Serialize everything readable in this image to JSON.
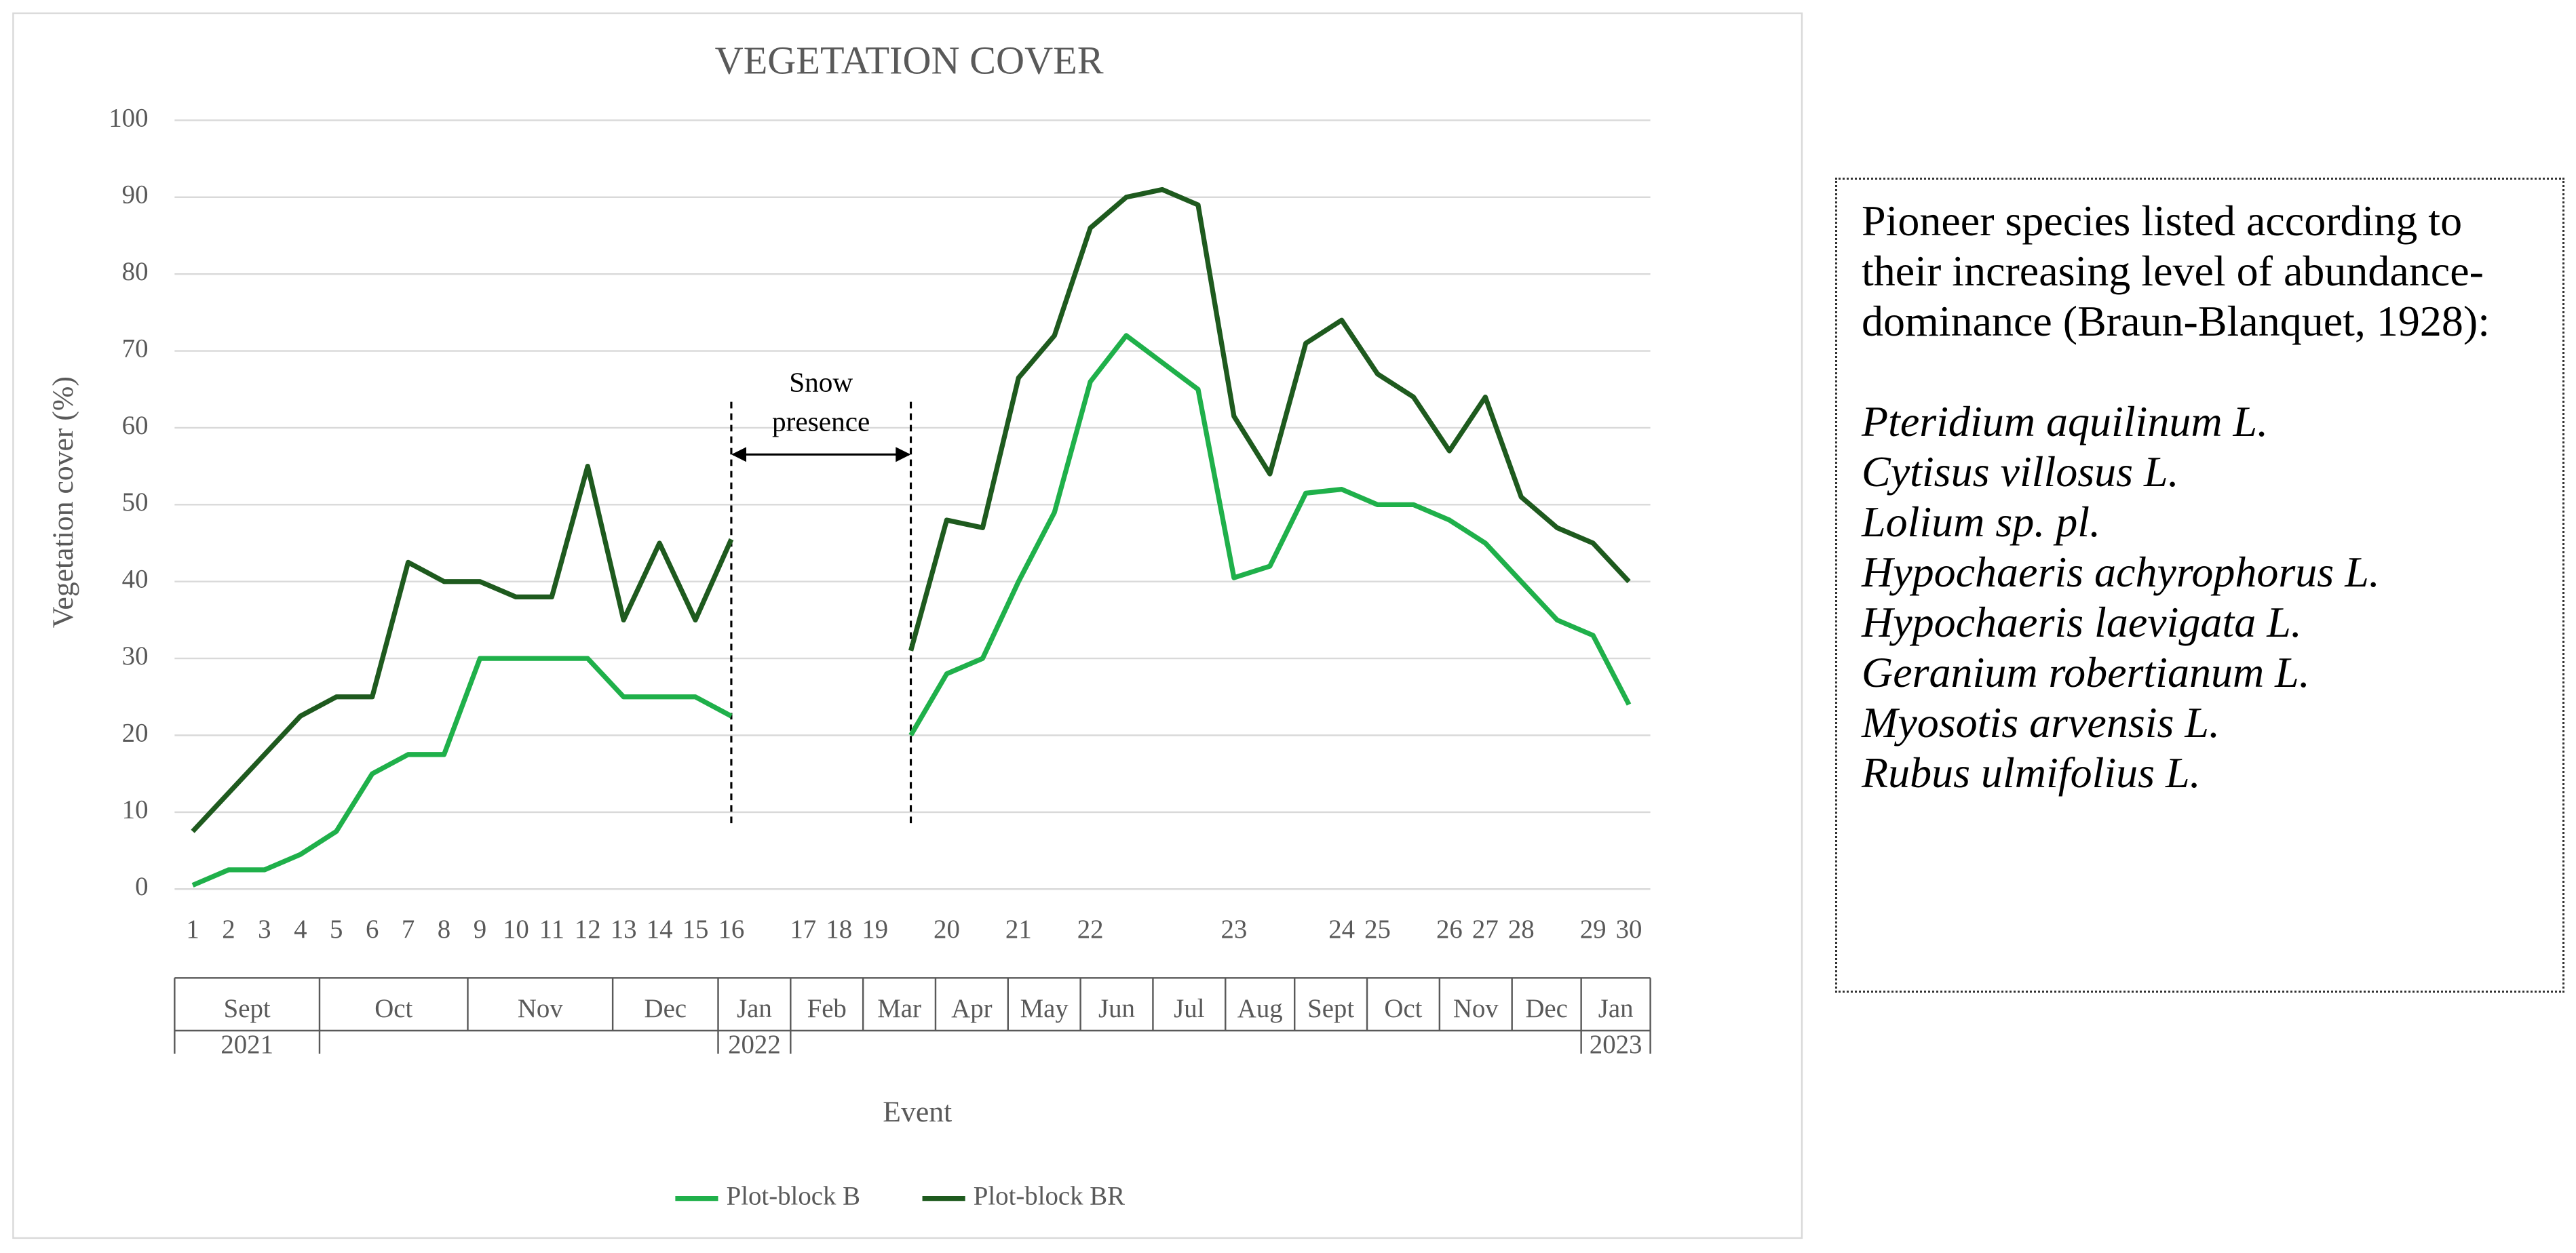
{
  "chart_data": {
    "type": "line",
    "title": "VEGETATION COVER",
    "y_label": "Vegetation cover (%)",
    "x_label": "Event",
    "categories": [
      "1",
      "2",
      "3",
      "4",
      "5",
      "6",
      "7",
      "8",
      "9",
      "10",
      "11",
      "12",
      "13",
      "14",
      "15",
      "16",
      null,
      "17",
      "18",
      "19",
      null,
      "20",
      null,
      "21",
      null,
      "22",
      null,
      null,
      null,
      "23",
      null,
      null,
      "24",
      "25",
      null,
      "26",
      "27",
      "28",
      null,
      "29",
      "30"
    ],
    "months": [
      "Sept",
      "Oct",
      "Nov",
      "Dec",
      "Jan",
      "Feb",
      "Mar",
      "Apr",
      "May",
      "Jun",
      "Jul",
      "Aug",
      "Sept",
      "Oct",
      "Nov",
      "Dec",
      "Jan"
    ],
    "years": [
      "2021",
      "2022",
      "2023"
    ],
    "series": [
      {
        "name": "Plot-block B",
        "color": "#1fb04a",
        "values": [
          0.5,
          2.5,
          2.5,
          4.5,
          7.5,
          15,
          17.5,
          17.5,
          30,
          30,
          30,
          30,
          25,
          25,
          25,
          22.5,
          null,
          null,
          null,
          null,
          20,
          28,
          30,
          40,
          49,
          66,
          72,
          68.5,
          65,
          40.5,
          42,
          51.5,
          52,
          50,
          50,
          48,
          45,
          40,
          35,
          33,
          24
        ]
      },
      {
        "name": "Plot-block BR",
        "color": "#1e5a1e",
        "values": [
          7.5,
          12.5,
          17.5,
          22.5,
          25,
          25,
          42.5,
          40,
          40,
          38,
          38,
          55,
          35,
          45,
          35,
          45.5,
          null,
          null,
          null,
          null,
          31,
          48,
          47,
          66.5,
          72,
          86,
          90,
          91,
          89,
          61.5,
          54,
          71,
          74,
          67,
          64,
          57,
          64,
          51,
          47,
          45,
          40
        ]
      }
    ],
    "annotation": "Snow presence",
    "ylim": [
      0,
      100
    ],
    "yticks": [
      0,
      10,
      20,
      30,
      40,
      50,
      60,
      70,
      80,
      90,
      100
    ],
    "grid": true,
    "legend": "bottom"
  },
  "side_note": {
    "heading": "Pioneer species listed according to their increasing level of abundance-dominance (Braun-Blanquet, 1928):",
    "species": [
      "Pteridium aquilinum L.",
      "Cytisus villosus L.",
      "Lolium sp. pl.",
      "Hypochaeris achyrophorus L.",
      "Hypochaeris laevigata L.",
      "Geranium robertianum L.",
      "Myosotis arvensis L.",
      "Rubus ulmifolius L."
    ]
  }
}
